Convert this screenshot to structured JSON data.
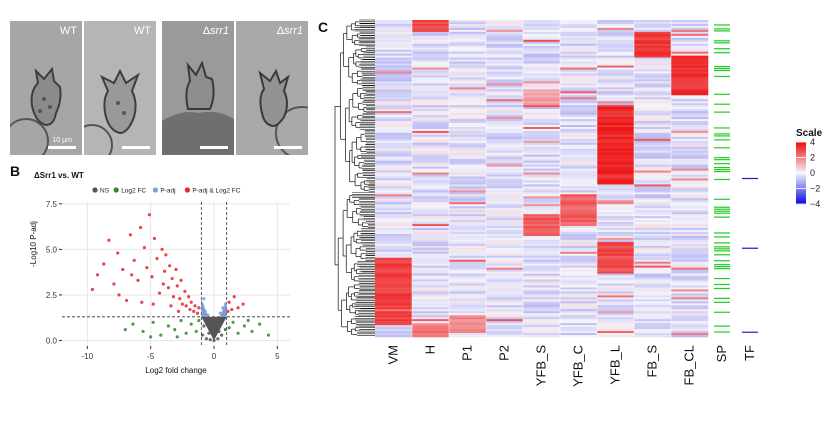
{
  "panels": {
    "a": "A",
    "b": "B",
    "c": "C"
  },
  "micrographs": [
    {
      "label": "WT",
      "genotype": "WT",
      "scale_text": "10 μm",
      "tone": "#a6a6a6"
    },
    {
      "label": "WT",
      "genotype": "WT",
      "scale_text": "",
      "tone": "#b5b5b5"
    },
    {
      "label": "Δsrr1",
      "genotype": "Δ",
      "italic": "srr1",
      "scale_text": "",
      "tone": "#9a9a9a"
    },
    {
      "label": "Δsrr1",
      "genotype": "Δ",
      "italic": "srr1",
      "scale_text": "",
      "tone": "#a9a9a9"
    }
  ],
  "chart_data": [
    {
      "type": "scatter",
      "title": "ΔSrr1 vs. WT",
      "xlabel": "Log2 fold change",
      "ylabel": "-Log10 P-adj",
      "xlim": [
        -12,
        6
      ],
      "ylim": [
        -0.3,
        7.6
      ],
      "xticks": [
        -10,
        -5,
        0,
        5
      ],
      "yticks": [
        0.0,
        2.5,
        5.0,
        7.5
      ],
      "ytick_labels": [
        "0.0",
        "2.5",
        "5.0",
        "7.5"
      ],
      "fc_cutoff": [
        -1,
        1
      ],
      "p_cutoff": 1.3,
      "legend_position": "top",
      "legend": [
        {
          "name": "NS",
          "color": "#555555"
        },
        {
          "name": "Log2 FC",
          "color": "#2e8b2e"
        },
        {
          "name": "P-adj",
          "color": "#7f9ddb"
        },
        {
          "name": "P-adj & Log2 FC",
          "color": "#e8242a"
        }
      ],
      "series": [
        {
          "name": "P-adj & Log2 FC",
          "points": [
            [
              -9.6,
              2.8
            ],
            [
              -9.2,
              3.6
            ],
            [
              -8.7,
              4.2
            ],
            [
              -8.3,
              5.5
            ],
            [
              -7.9,
              3.1
            ],
            [
              -7.6,
              4.8
            ],
            [
              -7.2,
              3.9
            ],
            [
              -6.9,
              2.2
            ],
            [
              -6.6,
              5.8
            ],
            [
              -6.3,
              4.4
            ],
            [
              -6.0,
              3.3
            ],
            [
              -5.8,
              6.2
            ],
            [
              -5.5,
              5.1
            ],
            [
              -5.3,
              4.0
            ],
            [
              -5.1,
              6.9
            ],
            [
              -4.9,
              3.5
            ],
            [
              -4.7,
              5.6
            ],
            [
              -4.5,
              4.5
            ],
            [
              -4.3,
              2.6
            ],
            [
              -4.1,
              5.0
            ],
            [
              -3.9,
              3.8
            ],
            [
              -3.8,
              4.7
            ],
            [
              -3.6,
              2.9
            ],
            [
              -3.5,
              4.1
            ],
            [
              -3.3,
              3.4
            ],
            [
              -3.2,
              2.4
            ],
            [
              -3.0,
              3.9
            ],
            [
              -2.9,
              3.0
            ],
            [
              -2.7,
              2.3
            ],
            [
              -2.6,
              3.3
            ],
            [
              -2.5,
              2.0
            ],
            [
              -2.3,
              2.7
            ],
            [
              -2.2,
              1.9
            ],
            [
              -2.0,
              2.4
            ],
            [
              -1.9,
              1.7
            ],
            [
              -1.8,
              2.1
            ],
            [
              -1.6,
              1.6
            ],
            [
              -1.5,
              1.9
            ],
            [
              -1.3,
              1.5
            ],
            [
              -1.2,
              1.8
            ],
            [
              1.1,
              1.6
            ],
            [
              1.2,
              2.1
            ],
            [
              1.4,
              1.7
            ],
            [
              1.6,
              2.4
            ],
            [
              1.9,
              1.8
            ],
            [
              2.3,
              2.0
            ],
            [
              -6.5,
              3.6
            ],
            [
              -5.7,
              2.1
            ],
            [
              -4.0,
              3.1
            ],
            [
              -3.4,
              1.9
            ],
            [
              -2.8,
              1.6
            ],
            [
              -7.5,
              2.5
            ],
            [
              -4.8,
              2.0
            ]
          ]
        },
        {
          "name": "Log2 FC",
          "points": [
            [
              -6.4,
              0.9
            ],
            [
              -5.6,
              0.5
            ],
            [
              -4.8,
              1.0
            ],
            [
              -4.2,
              0.3
            ],
            [
              -3.6,
              0.8
            ],
            [
              -3.1,
              0.6
            ],
            [
              -2.6,
              1.1
            ],
            [
              -2.2,
              0.4
            ],
            [
              -1.8,
              0.9
            ],
            [
              -1.4,
              0.5
            ],
            [
              -1.2,
              1.1
            ],
            [
              1.2,
              0.7
            ],
            [
              1.5,
              1.0
            ],
            [
              1.9,
              0.4
            ],
            [
              2.4,
              0.8
            ],
            [
              3.0,
              0.5
            ],
            [
              3.6,
              0.9
            ],
            [
              4.3,
              0.3
            ],
            [
              -5.0,
              0.2
            ],
            [
              -2.9,
              0.2
            ],
            [
              2.7,
              1.1
            ],
            [
              -7.0,
              0.6
            ]
          ]
        },
        {
          "name": "P-adj",
          "points": [
            [
              -0.9,
              1.9
            ],
            [
              -0.7,
              1.6
            ],
            [
              -0.5,
              1.4
            ],
            [
              0.5,
              1.5
            ],
            [
              0.7,
              1.8
            ],
            [
              0.9,
              2.0
            ],
            [
              -0.8,
              2.3
            ],
            [
              0.8,
              1.4
            ]
          ]
        },
        {
          "name": "NS",
          "points": [
            [
              -0.9,
              0.3
            ],
            [
              -0.6,
              0.1
            ],
            [
              -0.3,
              0.05
            ],
            [
              0.0,
              0.0
            ],
            [
              0.3,
              0.1
            ],
            [
              0.6,
              0.3
            ],
            [
              0.9,
              0.6
            ],
            [
              -0.8,
              0.8
            ],
            [
              -0.4,
              0.4
            ],
            [
              0.4,
              0.5
            ],
            [
              -0.2,
              0.9
            ],
            [
              0.2,
              0.8
            ],
            [
              -0.6,
              1.1
            ],
            [
              0.6,
              1.0
            ]
          ]
        }
      ]
    },
    {
      "type": "heatmap",
      "columns": [
        "VM",
        "H",
        "P1",
        "P2",
        "YFB_S",
        "YFB_C",
        "YFB_L",
        "FB_S",
        "FB_CL"
      ],
      "annotation_columns": [
        "SP",
        "TF"
      ],
      "legend": {
        "title": "Scale",
        "ticks": [
          4,
          2,
          0,
          -2,
          -4
        ],
        "range": [
          -4,
          4
        ]
      },
      "colors": {
        "low": "#1010e0",
        "mid": "#f4f4fb",
        "high": "#ee1111",
        "sp_mark": "#22cc22",
        "tf_mark": "#1a1acc"
      },
      "rows": 160,
      "blocks": [
        {
          "column": "H",
          "start": 0.0,
          "end": 0.04,
          "value": 3.5
        },
        {
          "column": "FB_S",
          "start": 0.04,
          "end": 0.12,
          "value": 3.6
        },
        {
          "column": "FB_CL",
          "start": 0.11,
          "end": 0.24,
          "value": 3.8
        },
        {
          "column": "YFB_S",
          "start": 0.22,
          "end": 0.27,
          "value": 2.0
        },
        {
          "column": "YFB_L",
          "start": 0.27,
          "end": 0.52,
          "value": 4.0
        },
        {
          "column": "YFB_C",
          "start": 0.55,
          "end": 0.65,
          "value": 3.0
        },
        {
          "column": "YFB_S",
          "start": 0.62,
          "end": 0.68,
          "value": 3.2
        },
        {
          "column": "YFB_L",
          "start": 0.7,
          "end": 0.8,
          "value": 3.4
        },
        {
          "column": "VM",
          "start": 0.75,
          "end": 0.96,
          "value": 3.6
        },
        {
          "column": "H",
          "start": 0.96,
          "end": 1.0,
          "value": 2.8
        },
        {
          "column": "P1",
          "start": 0.93,
          "end": 0.99,
          "value": 2.2
        }
      ]
    }
  ]
}
